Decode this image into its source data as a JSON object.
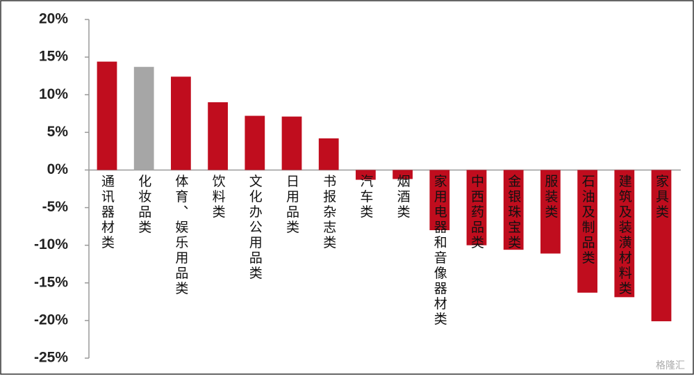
{
  "chart_data": {
    "type": "bar",
    "categories": [
      "通讯器材类",
      "化妆品类",
      "体育、娱乐用品类",
      "饮料类",
      "文化办公用品类",
      "日用品类",
      "书报杂志类",
      "汽车类",
      "烟酒类",
      "家用电器和音像器材类",
      "中西药品类",
      "金银珠宝类",
      "服装类",
      "石油及制品类",
      "建筑及装潢材料类",
      "家具类"
    ],
    "values": [
      14.4,
      13.7,
      12.4,
      9.0,
      7.2,
      7.1,
      4.2,
      -1.3,
      -1.2,
      -8.0,
      -10.0,
      -10.6,
      -11.1,
      -16.3,
      -16.9,
      -20.1
    ],
    "colors": [
      "#c00d1e",
      "#a6a6a6",
      "#c00d1e",
      "#c00d1e",
      "#c00d1e",
      "#c00d1e",
      "#c00d1e",
      "#c00d1e",
      "#c00d1e",
      "#c00d1e",
      "#c00d1e",
      "#c00d1e",
      "#c00d1e",
      "#c00d1e",
      "#c00d1e",
      "#c00d1e"
    ],
    "ylim": [
      -25,
      20
    ],
    "yticks": [
      {
        "value": -25,
        "label": "-25%"
      },
      {
        "value": -20,
        "label": "-20%"
      },
      {
        "value": -15,
        "label": "-15%"
      },
      {
        "value": -10,
        "label": "-10%"
      },
      {
        "value": -5,
        "label": "-5%"
      },
      {
        "value": 0,
        "label": "0%"
      },
      {
        "value": 5,
        "label": "5%"
      },
      {
        "value": 10,
        "label": "10%"
      },
      {
        "value": 15,
        "label": "15%"
      },
      {
        "value": 20,
        "label": "20%"
      }
    ],
    "grid": false,
    "watermark": "格隆汇"
  }
}
